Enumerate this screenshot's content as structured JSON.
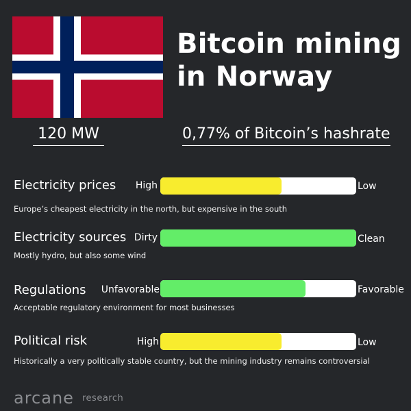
{
  "header": {
    "title_line1": "Bitcoin mining",
    "title_line2": "in Norway",
    "flag": {
      "red": "#ba0c2f",
      "white": "#ffffff",
      "blue": "#00205b"
    }
  },
  "stats": {
    "capacity": "120 MW",
    "hashrate_share": "0,77% of Bitcoin’s hashrate"
  },
  "metrics": [
    {
      "label": "Electricity prices",
      "left_label": "High",
      "right_label": "Low",
      "description": "Europe’s cheapest electricity in the north, but expensive in the south",
      "level": 0.62,
      "color": "#f8ec2e"
    },
    {
      "label": "Electricity sources",
      "left_label": "Dirty",
      "right_label": "Clean",
      "description": "Mostly hydro, but also some wind",
      "level": 1.0,
      "color": "#63ed68"
    },
    {
      "label": "Regulations",
      "left_label": "Unfavorable",
      "right_label": "Favorable",
      "description": "Acceptable regulatory environment for most businesses",
      "level": 0.74,
      "color": "#63ed68"
    },
    {
      "label": "Political risk",
      "left_label": "High",
      "right_label": "Low",
      "description": "Historically a very politically stable country, but the mining industry remains controversial",
      "level": 0.62,
      "color": "#f8ec2e"
    }
  ],
  "footer": {
    "brand": "arcane",
    "sub": "research"
  }
}
